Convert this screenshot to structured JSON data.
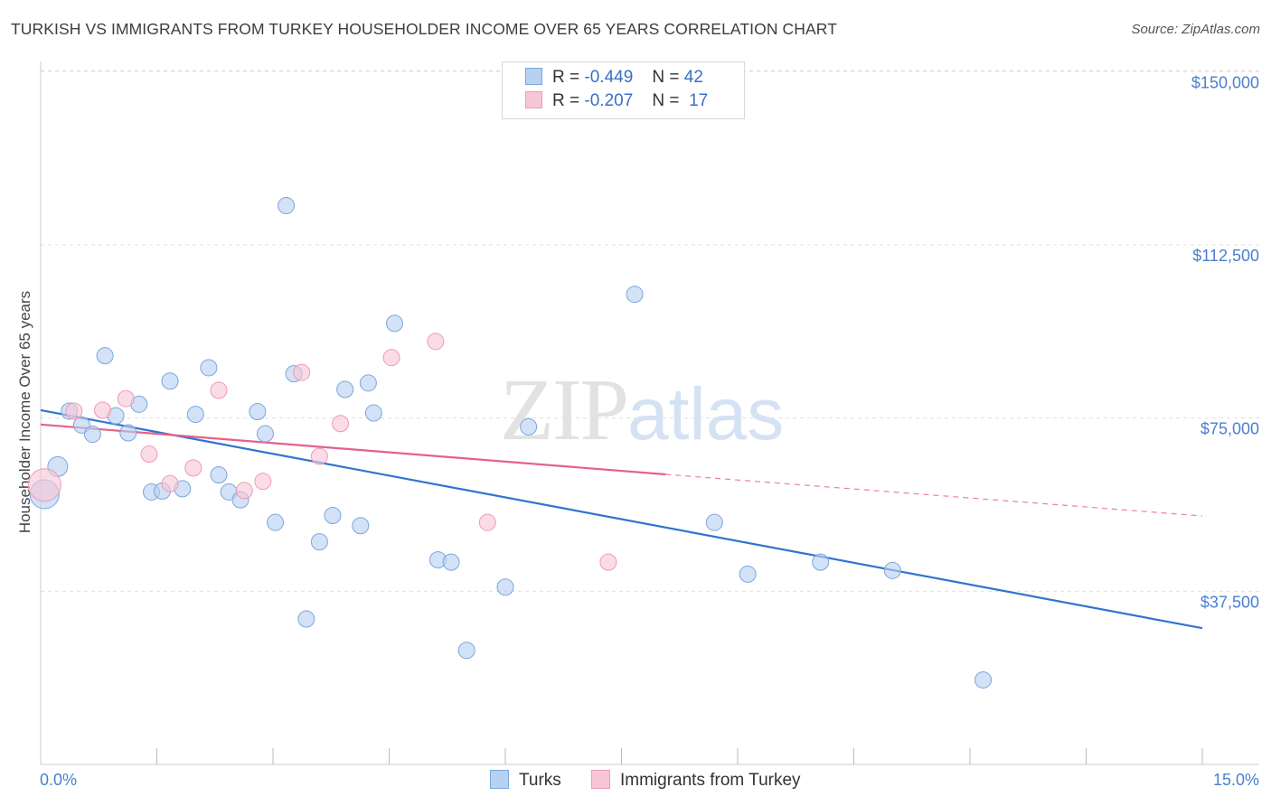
{
  "header": {
    "title": "TURKISH VS IMMIGRANTS FROM TURKEY HOUSEHOLDER INCOME OVER 65 YEARS CORRELATION CHART",
    "source": "Source: ZipAtlas.com"
  },
  "legend": {
    "turks": {
      "r_label": "R =",
      "r_value": "-0.449",
      "n_label": "N =",
      "n_value": "42"
    },
    "immigrants": {
      "r_label": "R =",
      "r_value": "-0.207",
      "n_label": "N =",
      "n_value": "17"
    }
  },
  "bottom_legend": {
    "turks": "Turks",
    "immigrants": "Immigrants from Turkey"
  },
  "watermark": {
    "zip": "ZIP",
    "atlas": "atlas"
  },
  "colors": {
    "turks_fill": "#b8d1f0",
    "turks_stroke": "#7aa6de",
    "turks_line": "#2f74d0",
    "imm_fill": "#f7c6d6",
    "imm_stroke": "#ee9ab6",
    "imm_line": "#e5608a",
    "tick_text": "#4a7fd0",
    "grid": "#e0e0e0"
  },
  "chart_data": {
    "type": "scatter",
    "title": "TURKISH VS IMMIGRANTS FROM TURKEY HOUSEHOLDER INCOME OVER 65 YEARS CORRELATION CHART",
    "xlabel": "",
    "ylabel": "Householder Income Over 65 years",
    "xlim": [
      0,
      15
    ],
    "ylim": [
      0,
      153000
    ],
    "x_tick_labels": [
      {
        "value": 0,
        "label": "0.0%"
      },
      {
        "value": 15,
        "label": "15.0%"
      }
    ],
    "y_ticks": [
      {
        "value": 37500,
        "label": "$37,500"
      },
      {
        "value": 75000,
        "label": "$75,000"
      },
      {
        "value": 112500,
        "label": "$112,500"
      },
      {
        "value": 150000,
        "label": "$150,000"
      }
    ],
    "x_minor_ticks": [
      1.5,
      3.0,
      4.5,
      6.0,
      7.5,
      9.0,
      10.5,
      12.0,
      13.5,
      15.0
    ],
    "series": [
      {
        "name": "Turks",
        "points": [
          [
            0.05,
            58500,
            16
          ],
          [
            0.22,
            64500,
            11
          ],
          [
            0.37,
            76500,
            9
          ],
          [
            0.53,
            73500,
            9
          ],
          [
            0.67,
            71500,
            9
          ],
          [
            0.83,
            88500,
            9
          ],
          [
            0.97,
            75500,
            9
          ],
          [
            1.13,
            71800,
            9
          ],
          [
            1.27,
            78000,
            9
          ],
          [
            1.43,
            59000,
            9
          ],
          [
            1.57,
            59200,
            9
          ],
          [
            1.67,
            83000,
            9
          ],
          [
            1.83,
            59700,
            9
          ],
          [
            2.0,
            75800,
            9
          ],
          [
            2.17,
            85900,
            9
          ],
          [
            2.3,
            62700,
            9
          ],
          [
            2.43,
            59000,
            9
          ],
          [
            2.58,
            57300,
            9
          ],
          [
            2.8,
            76400,
            9
          ],
          [
            2.9,
            71600,
            9
          ],
          [
            3.03,
            52400,
            9
          ],
          [
            3.17,
            121000,
            9
          ],
          [
            3.27,
            84600,
            9
          ],
          [
            3.43,
            31500,
            9
          ],
          [
            3.6,
            48200,
            9
          ],
          [
            3.77,
            53900,
            9
          ],
          [
            3.93,
            81200,
            9
          ],
          [
            4.13,
            51700,
            9
          ],
          [
            4.23,
            82600,
            9
          ],
          [
            4.3,
            76100,
            9
          ],
          [
            4.57,
            95500,
            9
          ],
          [
            5.13,
            44300,
            9
          ],
          [
            5.3,
            43800,
            9
          ],
          [
            5.5,
            24700,
            9
          ],
          [
            6.0,
            38400,
            9
          ],
          [
            6.3,
            73100,
            9
          ],
          [
            7.67,
            101800,
            9
          ],
          [
            8.7,
            52400,
            9
          ],
          [
            9.13,
            41200,
            9
          ],
          [
            10.07,
            43800,
            9
          ],
          [
            11.0,
            42000,
            9
          ],
          [
            12.17,
            18300,
            9
          ]
        ],
        "trend": {
          "x": [
            0.0,
            15.0
          ],
          "y": [
            76700,
            29500
          ],
          "style": "solid"
        }
      },
      {
        "name": "Immigrants from Turkey",
        "points": [
          [
            0.05,
            60500,
            18
          ],
          [
            0.43,
            76500,
            9
          ],
          [
            0.8,
            76700,
            9
          ],
          [
            1.1,
            79200,
            9
          ],
          [
            1.4,
            67200,
            9
          ],
          [
            1.67,
            60800,
            9
          ],
          [
            1.97,
            64200,
            9
          ],
          [
            2.3,
            81000,
            9
          ],
          [
            2.63,
            59300,
            9
          ],
          [
            2.87,
            61300,
            9
          ],
          [
            3.37,
            84900,
            9
          ],
          [
            3.6,
            66700,
            9
          ],
          [
            3.87,
            73800,
            9
          ],
          [
            4.53,
            88100,
            9
          ],
          [
            5.1,
            91600,
            9
          ],
          [
            5.77,
            52400,
            9
          ],
          [
            7.33,
            43800,
            9
          ]
        ],
        "trend": {
          "x": [
            0.0,
            8.07
          ],
          "y": [
            73600,
            62800
          ],
          "style": "solid",
          "extension": {
            "x": [
              8.07,
              15.0
            ],
            "y": [
              62800,
              53800
            ],
            "style": "dashed"
          }
        }
      }
    ],
    "legend": "top-center"
  }
}
